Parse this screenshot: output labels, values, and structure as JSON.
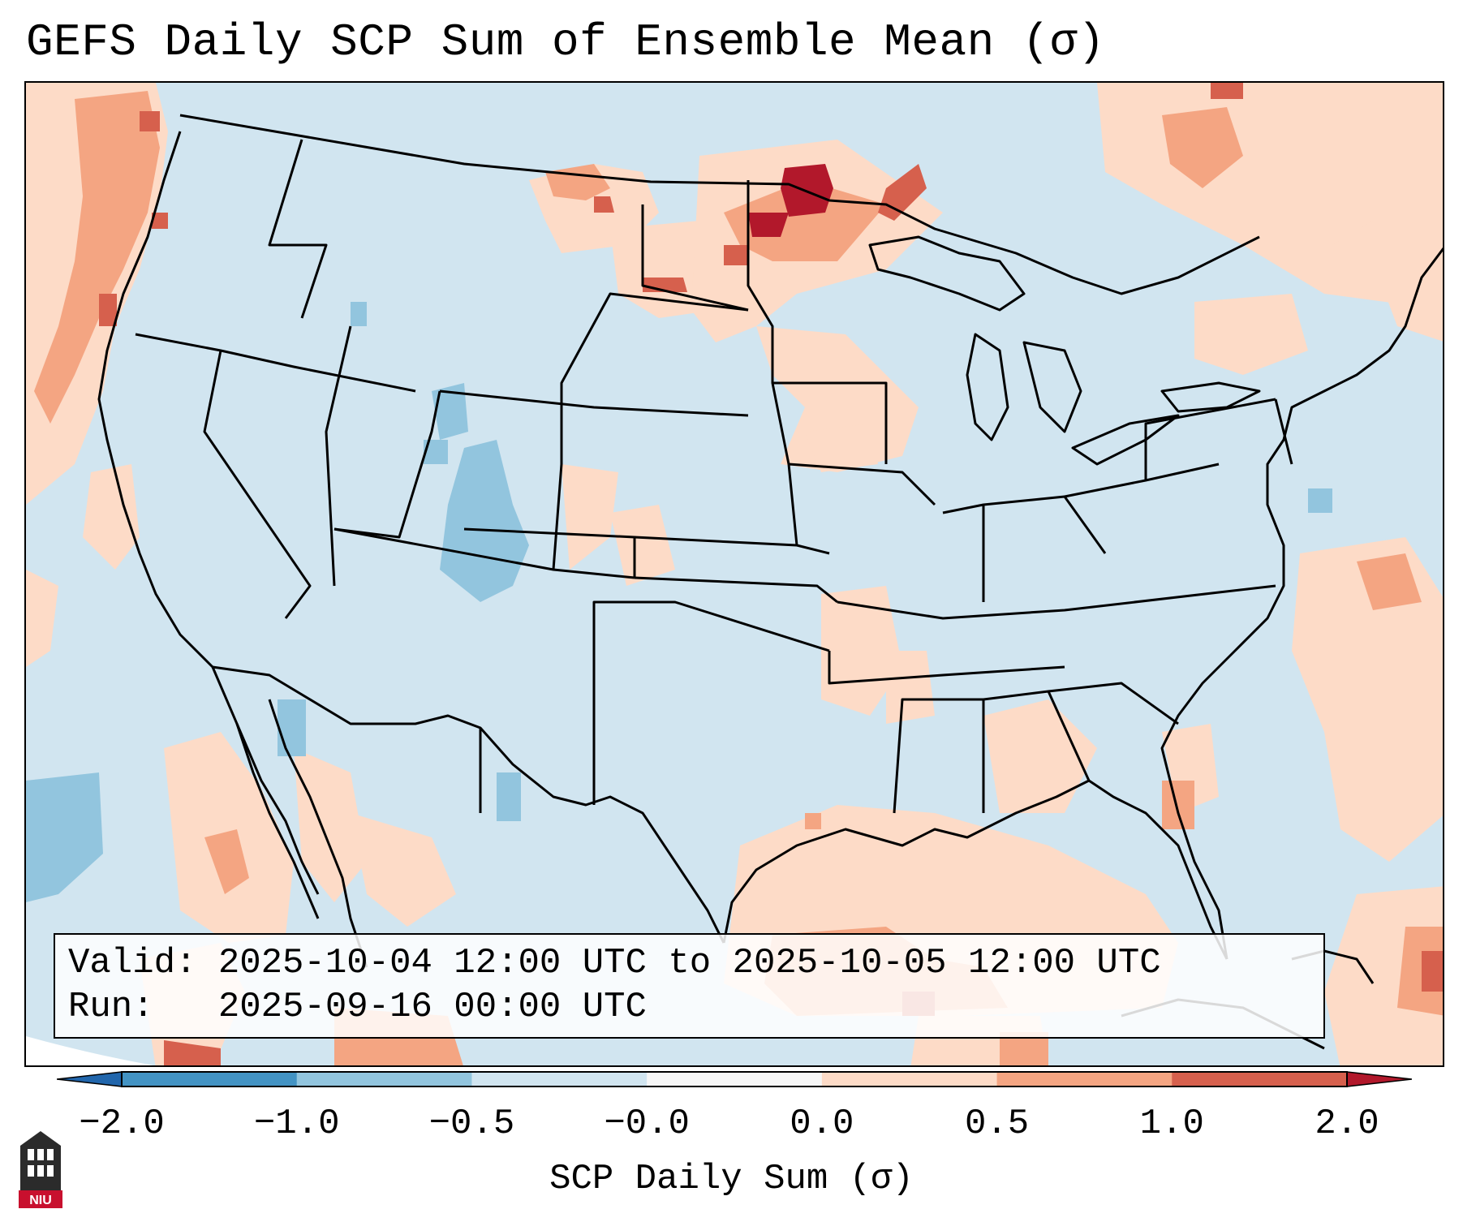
{
  "title": "GEFS Daily SCP Sum of Ensemble Mean (σ)",
  "info": {
    "valid_label": "Valid:",
    "valid_value": "2025-10-04 12:00 UTC to 2025-10-05 12:00 UTC",
    "run_label": "Run:",
    "run_value": "2025-09-16 00:00 UTC"
  },
  "colorbar": {
    "label": "SCP Daily Sum (σ)",
    "ticks": [
      "−2.0",
      "−1.0",
      "−0.5",
      "−0.0",
      "0.0",
      "0.5",
      "1.0",
      "2.0"
    ],
    "colors": [
      "#2166ac",
      "#4393c3",
      "#92c5de",
      "#d1e5f0",
      "#f7f7f7",
      "#fddbc7",
      "#f4a582",
      "#d6604d",
      "#b2182b"
    ]
  },
  "logo": {
    "text": "NIU"
  },
  "colors": {
    "ocean_background": "#d1e5f0",
    "light_red": "#fddbc7",
    "medium_red": "#f4a582",
    "dark_red": "#d6604d",
    "deep_red": "#b2182b",
    "light_blue": "#92c5de"
  }
}
